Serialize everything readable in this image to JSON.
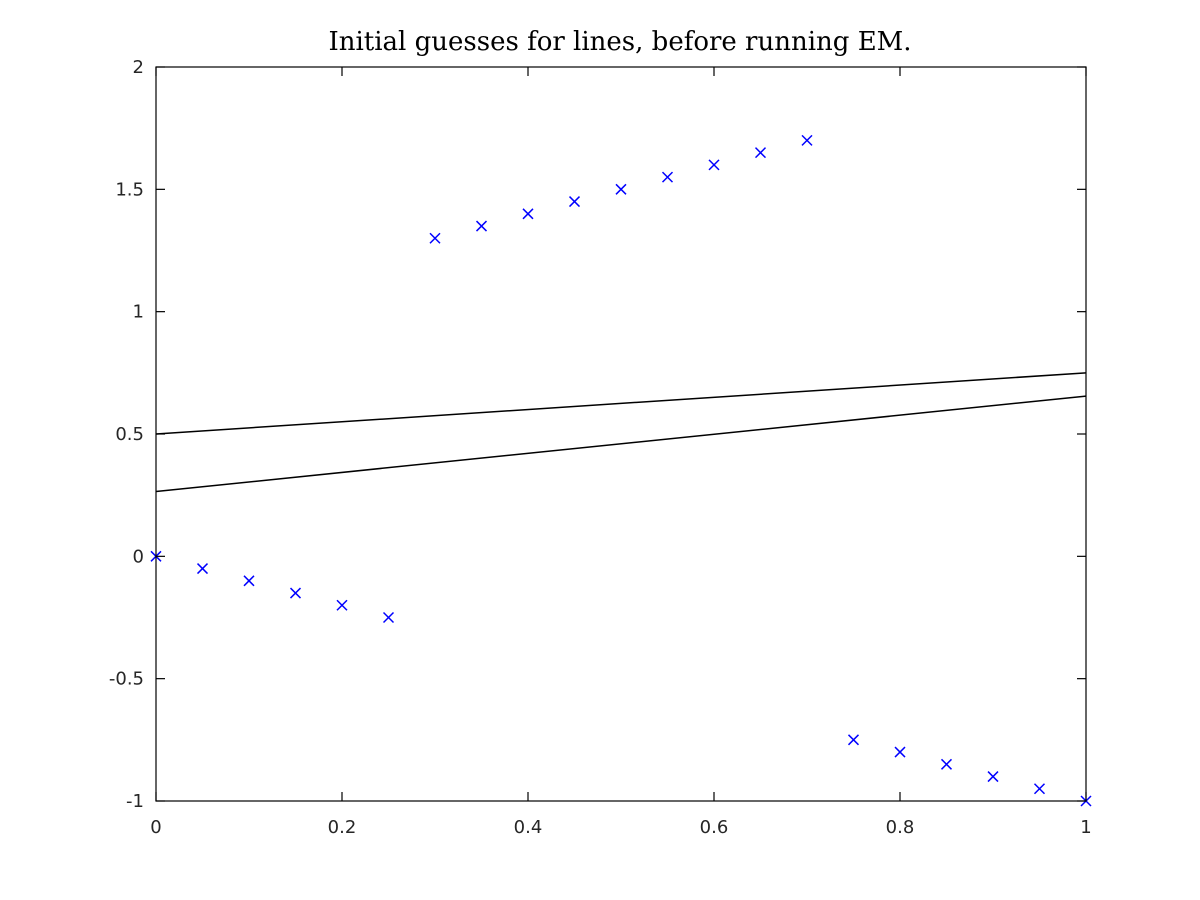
{
  "chart_data": {
    "type": "scatter",
    "title": "Initial guesses for lines, before running EM.",
    "xlabel": "",
    "ylabel": "",
    "xlim": [
      0,
      1
    ],
    "ylim": [
      -1,
      2
    ],
    "grid": false,
    "x_ticks": [
      0,
      0.2,
      0.4,
      0.6,
      0.8,
      1
    ],
    "x_tick_labels": [
      "0",
      "0.2",
      "0.4",
      "0.6",
      "0.8",
      "1"
    ],
    "y_ticks": [
      -1,
      -0.5,
      0,
      0.5,
      1,
      1.5,
      2
    ],
    "y_tick_labels": [
      "-1",
      "-0.5",
      "0",
      "0.5",
      "1",
      "1.5",
      "2"
    ],
    "series": [
      {
        "type": "scatter",
        "marker": "x",
        "color": "#0000ff",
        "x": [
          0,
          0.05,
          0.1,
          0.15,
          0.2,
          0.25,
          0.3,
          0.35,
          0.4,
          0.45,
          0.5,
          0.55,
          0.6,
          0.65,
          0.7,
          0.75,
          0.8,
          0.85,
          0.9,
          0.95,
          1
        ],
        "y": [
          0,
          -0.05,
          -0.1,
          -0.15,
          -0.2,
          -0.25,
          1.3,
          1.35,
          1.4,
          1.45,
          1.5,
          1.55,
          1.6,
          1.65,
          1.7,
          -0.75,
          -0.8,
          -0.85,
          -0.9,
          -0.95,
          -1
        ]
      },
      {
        "type": "line",
        "color": "#000000",
        "x": [
          0,
          1
        ],
        "y": [
          0.5,
          0.75
        ]
      },
      {
        "type": "line",
        "color": "#000000",
        "x": [
          0,
          1
        ],
        "y": [
          0.265,
          0.655
        ]
      }
    ]
  }
}
